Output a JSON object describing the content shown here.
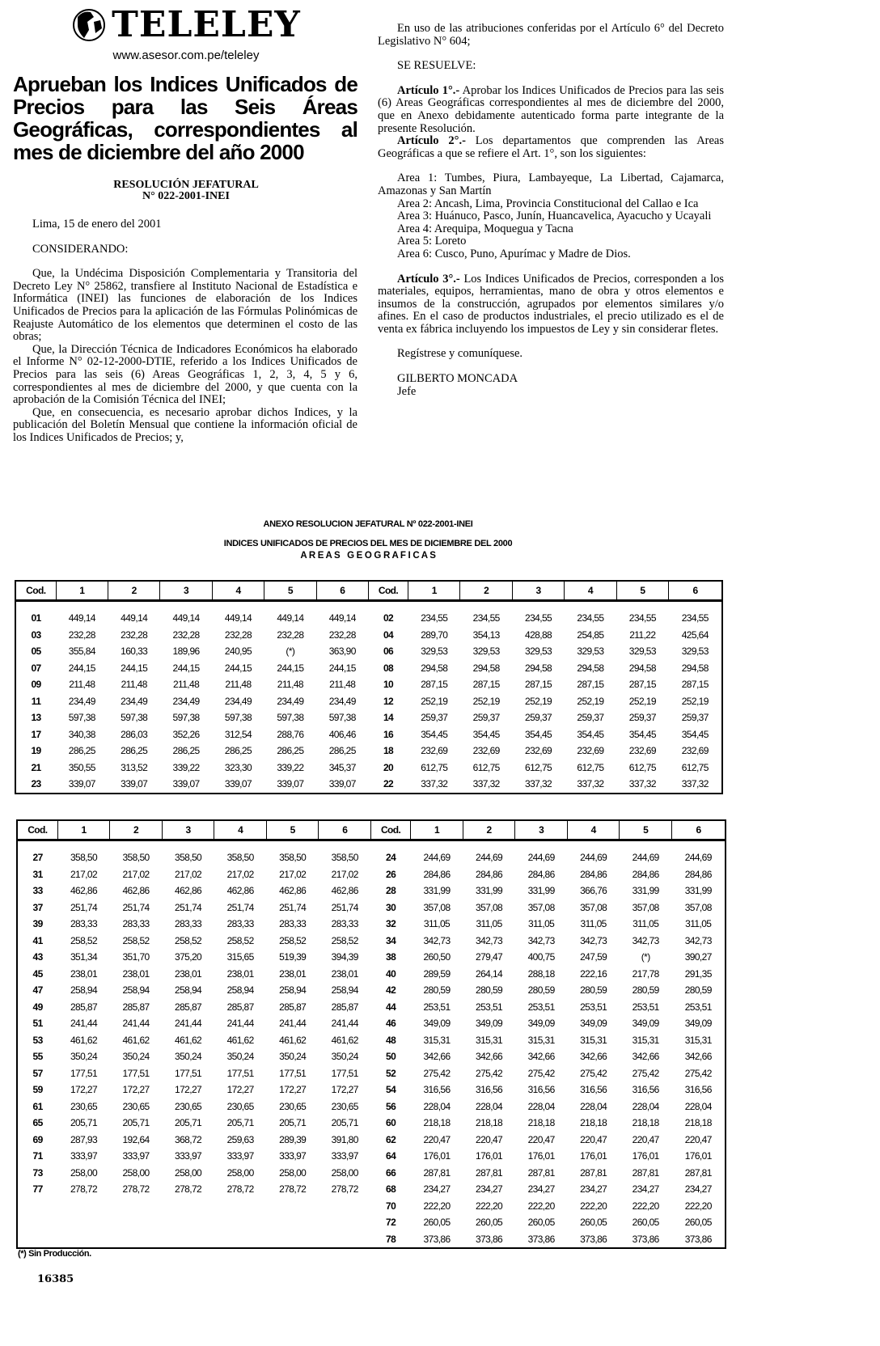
{
  "masthead": {
    "logo_text": "TELELEY",
    "url": "www.asesor.com.pe/teleley"
  },
  "headline": "Aprueban los Indices Unificados de Precios para las Seis Áreas Geográficas, correspondientes al mes de diciembre del año 2000",
  "resolution": {
    "line1": "RESOLUCIÓN JEFATURAL",
    "line2": "N° 022-2001-INEI"
  },
  "left_column": {
    "date": "Lima, 15 de enero del 2001",
    "considerando": "CONSIDERANDO:",
    "paragraphs": [
      "Que, la Undécima Disposición Complementaria y Transitoria del Decreto Ley N° 25862, transfiere al Instituto Nacional de Estadística e Informática (INEI) las funciones de elaboración de los Indices Unificados de Precios para la aplicación de las Fórmulas Polinómicas de Reajuste Automático de los elementos que determinen el costo de las obras;",
      "Que, la Dirección Técnica de Indicadores Económicos ha elaborado el Informe N° 02-12-2000-DTIE, referido a los Indices Unificados de Precios para las seis (6) Areas Geográficas 1, 2, 3, 4, 5 y 6, correspondientes al mes de diciembre del 2000, y que cuenta con la aprobación de la Comisión Técnica del INEI;",
      "Que, en consecuencia, es necesario aprobar dichos Indices, y la publicación del Boletín Mensual que contiene la información oficial de los Indices Unificados de Precios; y,"
    ]
  },
  "right_column": {
    "intro": "En uso de las atribuciones conferidas por el Artículo 6° del Decreto Legislativo N° 604;",
    "se_resuelve": "SE RESUELVE:",
    "art1_label": "Artículo 1°.-",
    "art1_text": " Aprobar los Indices Unificados de Precios para las seis (6) Areas Geográficas correspondientes al mes de diciembre del 2000, que en Anexo debidamente autenticado forma parte integrante de la presente Resolución.",
    "art2_label": "Artículo 2°.-",
    "art2_text": " Los departamentos que comprenden las Areas Geográficas a que se refiere el Art. 1°, son los siguientes:",
    "areas": [
      "Area 1: Tumbes, Piura, Lambayeque, La Libertad, Cajamarca, Amazonas y San Martín",
      "Area 2: Ancash, Lima, Provincia Constitucional del Callao e Ica",
      "Area 3: Huánuco, Pasco, Junín, Huancavelica, Ayacucho y Ucayali",
      "Area 4: Arequipa, Moquegua y Tacna",
      "Area 5: Loreto",
      "Area 6: Cusco, Puno, Apurímac y Madre de Dios."
    ],
    "art3_label": "Artículo 3°.-",
    "art3_text": " Los Indices Unificados de Precios, corresponden a los materiales, equipos, herramientas, mano de obra y otros elementos e insumos de la construcción, agrupados por elementos similares y/o afines. En el caso de productos industriales, el precio utilizado es el de venta ex fábrica incluyendo los impuestos de Ley y sin considerar fletes.",
    "closing": "Regístrese y comuníquese.",
    "signer": "GILBERTO MONCADA",
    "signer_title": "Jefe"
  },
  "annex": {
    "title": "ANEXO RESOLUCION JEFATURAL Nº 022-2001-INEI",
    "subtitle": "INDICES UNIFICADOS DE PRECIOS DEL MES DE DICIEMBRE DEL 2000",
    "areas_label": "A R E A S   G E O G R A F I C A S"
  },
  "tables": [
    {
      "headers": [
        "Cod.",
        "1",
        "2",
        "3",
        "4",
        "5",
        "6",
        "Cod.",
        "1",
        "2",
        "3",
        "4",
        "5",
        "6"
      ],
      "left": [
        [
          "01",
          "449,14",
          "449,14",
          "449,14",
          "449,14",
          "449,14",
          "449,14"
        ],
        [
          "03",
          "232,28",
          "232,28",
          "232,28",
          "232,28",
          "232,28",
          "232,28"
        ],
        [
          "05",
          "355,84",
          "160,33",
          "189,96",
          "240,95",
          "(*)",
          "363,90"
        ],
        [
          "07",
          "244,15",
          "244,15",
          "244,15",
          "244,15",
          "244,15",
          "244,15"
        ],
        [
          "09",
          "211,48",
          "211,48",
          "211,48",
          "211,48",
          "211,48",
          "211,48"
        ],
        [
          "11",
          "234,49",
          "234,49",
          "234,49",
          "234,49",
          "234,49",
          "234,49"
        ],
        [
          "13",
          "597,38",
          "597,38",
          "597,38",
          "597,38",
          "597,38",
          "597,38"
        ],
        [
          "17",
          "340,38",
          "286,03",
          "352,26",
          "312,54",
          "288,76",
          "406,46"
        ],
        [
          "19",
          "286,25",
          "286,25",
          "286,25",
          "286,25",
          "286,25",
          "286,25"
        ],
        [
          "21",
          "350,55",
          "313,52",
          "339,22",
          "323,30",
          "339,22",
          "345,37"
        ],
        [
          "23",
          "339,07",
          "339,07",
          "339,07",
          "339,07",
          "339,07",
          "339,07"
        ]
      ],
      "right": [
        [
          "02",
          "234,55",
          "234,55",
          "234,55",
          "234,55",
          "234,55",
          "234,55"
        ],
        [
          "04",
          "289,70",
          "354,13",
          "428,88",
          "254,85",
          "211,22",
          "425,64"
        ],
        [
          "06",
          "329,53",
          "329,53",
          "329,53",
          "329,53",
          "329,53",
          "329,53"
        ],
        [
          "08",
          "294,58",
          "294,58",
          "294,58",
          "294,58",
          "294,58",
          "294,58"
        ],
        [
          "10",
          "287,15",
          "287,15",
          "287,15",
          "287,15",
          "287,15",
          "287,15"
        ],
        [
          "12",
          "252,19",
          "252,19",
          "252,19",
          "252,19",
          "252,19",
          "252,19"
        ],
        [
          "14",
          "259,37",
          "259,37",
          "259,37",
          "259,37",
          "259,37",
          "259,37"
        ],
        [
          "16",
          "354,45",
          "354,45",
          "354,45",
          "354,45",
          "354,45",
          "354,45"
        ],
        [
          "18",
          "232,69",
          "232,69",
          "232,69",
          "232,69",
          "232,69",
          "232,69"
        ],
        [
          "20",
          "612,75",
          "612,75",
          "612,75",
          "612,75",
          "612,75",
          "612,75"
        ],
        [
          "22",
          "337,32",
          "337,32",
          "337,32",
          "337,32",
          "337,32",
          "337,32"
        ]
      ]
    },
    {
      "headers": [
        "Cod.",
        "1",
        "2",
        "3",
        "4",
        "5",
        "6",
        "Cod.",
        "1",
        "2",
        "3",
        "4",
        "5",
        "6"
      ],
      "left": [
        [
          "27",
          "358,50",
          "358,50",
          "358,50",
          "358,50",
          "358,50",
          "358,50"
        ],
        [
          "31",
          "217,02",
          "217,02",
          "217,02",
          "217,02",
          "217,02",
          "217,02"
        ],
        [
          "33",
          "462,86",
          "462,86",
          "462,86",
          "462,86",
          "462,86",
          "462,86"
        ],
        [
          "37",
          "251,74",
          "251,74",
          "251,74",
          "251,74",
          "251,74",
          "251,74"
        ],
        [
          "39",
          "283,33",
          "283,33",
          "283,33",
          "283,33",
          "283,33",
          "283,33"
        ],
        [
          "41",
          "258,52",
          "258,52",
          "258,52",
          "258,52",
          "258,52",
          "258,52"
        ],
        [
          "43",
          "351,34",
          "351,70",
          "375,20",
          "315,65",
          "519,39",
          "394,39"
        ],
        [
          "45",
          "238,01",
          "238,01",
          "238,01",
          "238,01",
          "238,01",
          "238,01"
        ],
        [
          "47",
          "258,94",
          "258,94",
          "258,94",
          "258,94",
          "258,94",
          "258,94"
        ],
        [
          "49",
          "285,87",
          "285,87",
          "285,87",
          "285,87",
          "285,87",
          "285,87"
        ],
        [
          "51",
          "241,44",
          "241,44",
          "241,44",
          "241,44",
          "241,44",
          "241,44"
        ],
        [
          "53",
          "461,62",
          "461,62",
          "461,62",
          "461,62",
          "461,62",
          "461,62"
        ],
        [
          "55",
          "350,24",
          "350,24",
          "350,24",
          "350,24",
          "350,24",
          "350,24"
        ],
        [
          "57",
          "177,51",
          "177,51",
          "177,51",
          "177,51",
          "177,51",
          "177,51"
        ],
        [
          "59",
          "172,27",
          "172,27",
          "172,27",
          "172,27",
          "172,27",
          "172,27"
        ],
        [
          "61",
          "230,65",
          "230,65",
          "230,65",
          "230,65",
          "230,65",
          "230,65"
        ],
        [
          "65",
          "205,71",
          "205,71",
          "205,71",
          "205,71",
          "205,71",
          "205,71"
        ],
        [
          "69",
          "287,93",
          "192,64",
          "368,72",
          "259,63",
          "289,39",
          "391,80"
        ],
        [
          "71",
          "333,97",
          "333,97",
          "333,97",
          "333,97",
          "333,97",
          "333,97"
        ],
        [
          "73",
          "258,00",
          "258,00",
          "258,00",
          "258,00",
          "258,00",
          "258,00"
        ],
        [
          "77",
          "278,72",
          "278,72",
          "278,72",
          "278,72",
          "278,72",
          "278,72"
        ]
      ],
      "right": [
        [
          "24",
          "244,69",
          "244,69",
          "244,69",
          "244,69",
          "244,69",
          "244,69"
        ],
        [
          "26",
          "284,86",
          "284,86",
          "284,86",
          "284,86",
          "284,86",
          "284,86"
        ],
        [
          "28",
          "331,99",
          "331,99",
          "331,99",
          "366,76",
          "331,99",
          "331,99"
        ],
        [
          "30",
          "357,08",
          "357,08",
          "357,08",
          "357,08",
          "357,08",
          "357,08"
        ],
        [
          "32",
          "311,05",
          "311,05",
          "311,05",
          "311,05",
          "311,05",
          "311,05"
        ],
        [
          "34",
          "342,73",
          "342,73",
          "342,73",
          "342,73",
          "342,73",
          "342,73"
        ],
        [
          "38",
          "260,50",
          "279,47",
          "400,75",
          "247,59",
          "(*)",
          "390,27"
        ],
        [
          "40",
          "289,59",
          "264,14",
          "288,18",
          "222,16",
          "217,78",
          "291,35"
        ],
        [
          "42",
          "280,59",
          "280,59",
          "280,59",
          "280,59",
          "280,59",
          "280,59"
        ],
        [
          "44",
          "253,51",
          "253,51",
          "253,51",
          "253,51",
          "253,51",
          "253,51"
        ],
        [
          "46",
          "349,09",
          "349,09",
          "349,09",
          "349,09",
          "349,09",
          "349,09"
        ],
        [
          "48",
          "315,31",
          "315,31",
          "315,31",
          "315,31",
          "315,31",
          "315,31"
        ],
        [
          "50",
          "342,66",
          "342,66",
          "342,66",
          "342,66",
          "342,66",
          "342,66"
        ],
        [
          "52",
          "275,42",
          "275,42",
          "275,42",
          "275,42",
          "275,42",
          "275,42"
        ],
        [
          "54",
          "316,56",
          "316,56",
          "316,56",
          "316,56",
          "316,56",
          "316,56"
        ],
        [
          "56",
          "228,04",
          "228,04",
          "228,04",
          "228,04",
          "228,04",
          "228,04"
        ],
        [
          "60",
          "218,18",
          "218,18",
          "218,18",
          "218,18",
          "218,18",
          "218,18"
        ],
        [
          "62",
          "220,47",
          "220,47",
          "220,47",
          "220,47",
          "220,47",
          "220,47"
        ],
        [
          "64",
          "176,01",
          "176,01",
          "176,01",
          "176,01",
          "176,01",
          "176,01"
        ],
        [
          "66",
          "287,81",
          "287,81",
          "287,81",
          "287,81",
          "287,81",
          "287,81"
        ],
        [
          "68",
          "234,27",
          "234,27",
          "234,27",
          "234,27",
          "234,27",
          "234,27"
        ],
        [
          "70",
          "222,20",
          "222,20",
          "222,20",
          "222,20",
          "222,20",
          "222,20"
        ],
        [
          "72",
          "260,05",
          "260,05",
          "260,05",
          "260,05",
          "260,05",
          "260,05"
        ],
        [
          "78",
          "373,86",
          "373,86",
          "373,86",
          "373,86",
          "373,86",
          "373,86"
        ]
      ]
    }
  ],
  "footnote": "(*) Sin Producción.",
  "page_number": "16385"
}
